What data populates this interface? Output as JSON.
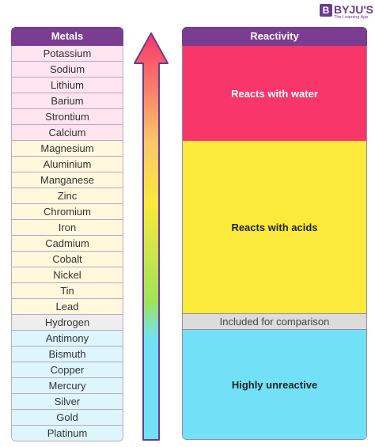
{
  "brand": {
    "icon_letter": "B",
    "name": "BYJU'S",
    "tagline": "The Learning App"
  },
  "metals": {
    "header": "Metals",
    "items": [
      {
        "label": "Potassium",
        "group": "water"
      },
      {
        "label": "Sodium",
        "group": "water"
      },
      {
        "label": "Lithium",
        "group": "water"
      },
      {
        "label": "Barium",
        "group": "water"
      },
      {
        "label": "Strontium",
        "group": "water"
      },
      {
        "label": "Calcium",
        "group": "water"
      },
      {
        "label": "Magnesium",
        "group": "acids"
      },
      {
        "label": "Aluminium",
        "group": "acids"
      },
      {
        "label": "Manganese",
        "group": "acids"
      },
      {
        "label": "Zinc",
        "group": "acids"
      },
      {
        "label": "Chromium",
        "group": "acids"
      },
      {
        "label": "Iron",
        "group": "acids"
      },
      {
        "label": "Cadmium",
        "group": "acids"
      },
      {
        "label": "Cobalt",
        "group": "acids"
      },
      {
        "label": "Nickel",
        "group": "acids"
      },
      {
        "label": "Tin",
        "group": "acids"
      },
      {
        "label": "Lead",
        "group": "acids"
      },
      {
        "label": "Hydrogen",
        "group": "comparison"
      },
      {
        "label": "Antimony",
        "group": "unreactive"
      },
      {
        "label": "Bismuth",
        "group": "unreactive"
      },
      {
        "label": "Copper",
        "group": "unreactive"
      },
      {
        "label": "Mercury",
        "group": "unreactive"
      },
      {
        "label": "Silver",
        "group": "unreactive"
      },
      {
        "label": "Gold",
        "group": "unreactive"
      },
      {
        "label": "Platinum",
        "group": "unreactive"
      }
    ]
  },
  "reactivity": {
    "header": "Reactivity",
    "bands": {
      "water": "Reacts with water",
      "acids": "Reacts with acids",
      "comparison": "Included for comparison",
      "unreactive": "Highly unreactive"
    }
  },
  "colors": {
    "header_purple": "#7b3d91",
    "water": "#f8366a",
    "acids": "#fbe93b",
    "comparison": "#dcdcdc",
    "unreactive": "#72e1f7",
    "arrow_gradient": [
      "#f8366a",
      "#fbc86a",
      "#fbe93b",
      "#9fe35a",
      "#72e1f7"
    ]
  }
}
